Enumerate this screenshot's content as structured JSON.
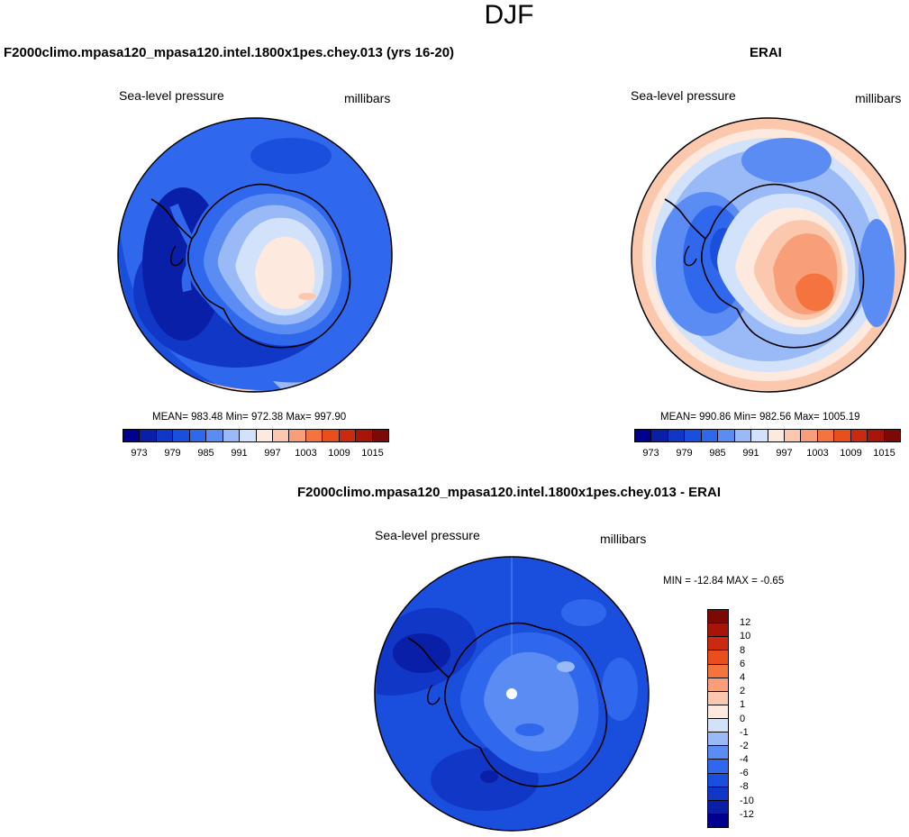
{
  "figure": {
    "season": "DJF",
    "diff_title": "F2000climo.mpasa120_mpasa120.intel.1800x1pes.chey.013 - ERAI"
  },
  "chart_data": [
    {
      "type": "heatmap",
      "projection": "south-polar-stereographic",
      "title": "F2000climo.mpasa120_mpasa120.intel.1800x1pes.chey.013 (yrs 16-20)",
      "left_label": "Sea-level pressure",
      "right_label": "millibars",
      "stats": "MEAN= 983.48  Min= 972.38  Max= 997.90",
      "mean": 983.48,
      "min": 972.38,
      "max": 997.9,
      "levels": [
        973,
        976,
        979,
        982,
        985,
        988,
        991,
        994,
        997,
        1000,
        1003,
        1006,
        1009,
        1012,
        1015
      ],
      "tick_labels": [
        "973",
        "979",
        "985",
        "991",
        "997",
        "1003",
        "1009",
        "1015"
      ],
      "colors": [
        "#00008f",
        "#0a1fa8",
        "#1137c6",
        "#1a4fdd",
        "#2f68ec",
        "#5a8cf3",
        "#9ab9f7",
        "#d2e2fb",
        "#fde9dd",
        "#fbc8ad",
        "#f89f7a",
        "#f4733f",
        "#e94f1c",
        "#cc2a10",
        "#a81408",
        "#7a0a03"
      ]
    },
    {
      "type": "heatmap",
      "projection": "south-polar-stereographic",
      "title": "ERAI",
      "left_label": "Sea-level pressure",
      "right_label": "millibars",
      "stats": "MEAN= 990.86  Min= 982.56  Max= 1005.19",
      "mean": 990.86,
      "min": 982.56,
      "max": 1005.19,
      "levels": [
        973,
        976,
        979,
        982,
        985,
        988,
        991,
        994,
        997,
        1000,
        1003,
        1006,
        1009,
        1012,
        1015
      ],
      "tick_labels": [
        "973",
        "979",
        "985",
        "991",
        "997",
        "1003",
        "1009",
        "1015"
      ],
      "colors": [
        "#00008f",
        "#0a1fa8",
        "#1137c6",
        "#1a4fdd",
        "#2f68ec",
        "#5a8cf3",
        "#9ab9f7",
        "#d2e2fb",
        "#fde9dd",
        "#fbc8ad",
        "#f89f7a",
        "#f4733f",
        "#e94f1c",
        "#cc2a10",
        "#a81408",
        "#7a0a03"
      ]
    },
    {
      "type": "heatmap",
      "projection": "south-polar-stereographic",
      "title": "F2000climo.mpasa120_mpasa120.intel.1800x1pes.chey.013 - ERAI",
      "left_label": "Sea-level pressure",
      "right_label": "millibars",
      "stats": "MIN = -12.84 MAX =  -0.65",
      "min": -12.84,
      "max": -0.65,
      "levels": [
        -12,
        -10,
        -8,
        -6,
        -4,
        -2,
        -1,
        0,
        1,
        2,
        4,
        6,
        8,
        10,
        12
      ],
      "tick_labels": [
        "12",
        "10",
        "8",
        "6",
        "4",
        "2",
        "1",
        "0",
        "-1",
        "-2",
        "-4",
        "-6",
        "-8",
        "-10",
        "-12"
      ],
      "colors": [
        "#7a0a03",
        "#a81408",
        "#cc2a10",
        "#e94f1c",
        "#f4733f",
        "#f89f7a",
        "#fbc8ad",
        "#fde9dd",
        "#d2e2fb",
        "#9ab9f7",
        "#5a8cf3",
        "#2f68ec",
        "#1a4fdd",
        "#1137c6",
        "#0a1fa8",
        "#00008f"
      ]
    }
  ]
}
